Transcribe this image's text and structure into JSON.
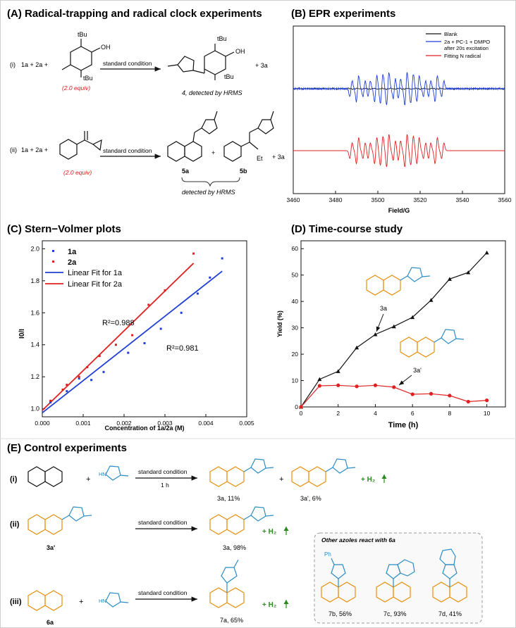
{
  "panelA": {
    "title": "(A) Radical-trapping and radical clock experiments",
    "row1": {
      "label": "(i)",
      "reactants": "1a + 2a +",
      "tbu": "tBu",
      "oh": "OH",
      "equiv": "(2.0 equiv)",
      "arrow": "standard condition",
      "plus3a": "+ 3a",
      "product": "4, detected by HRMS"
    },
    "row2": {
      "label": "(ii)",
      "reactants": "1a + 2a +",
      "equiv": "(2.0 equiv)",
      "arrow": "standard condition",
      "p5a": "5a",
      "plus": "+",
      "p5b": "5b",
      "et": "Et",
      "plus3a": "+ 3a",
      "detected": "detected by HRMS"
    }
  },
  "panelB": {
    "title": "(B) EPR experiments",
    "legend": [
      "Blank",
      "2a + PC-1 + DMPO",
      "after 20s excitation",
      "Fitting N radical"
    ],
    "xlabel": "Field/G",
    "xticks": [
      "3460",
      "3480",
      "3500",
      "3520",
      "3540",
      "3560"
    ]
  },
  "panelC": {
    "title": "(C) Stern−Volmer plots",
    "legend": [
      "1a",
      "2a",
      "Linear Fit for 1a",
      "Linear Fit for 2a"
    ],
    "ylabel": "I0/I",
    "xlabel": "Concentration of 1a/2a (M)",
    "r2_2a": "R²=0.988",
    "r2_1a": "R²=0.981",
    "xticks": [
      "0.000",
      "0.001",
      "0.002",
      "0.003",
      "0.004",
      "0.005"
    ],
    "yticks": [
      "1.0",
      "1.2",
      "1.4",
      "1.6",
      "1.8",
      "2.0"
    ]
  },
  "panelD": {
    "title": "(D) Time-course study",
    "ylabel": "Yield (%)",
    "xlabel": "Time (h)",
    "label3a": "3a",
    "label3ap": "3a'",
    "xticks": [
      "0",
      "2",
      "4",
      "6",
      "8",
      "10"
    ],
    "yticks": [
      "0",
      "10",
      "20",
      "30",
      "40",
      "50",
      "60"
    ]
  },
  "panelE": {
    "title": "(E) Control experiments",
    "row1": {
      "label": "(i)",
      "plus": "+",
      "arrow": "standard condition",
      "time": "1 h",
      "p1": "3a, 11%",
      "plus2": "+",
      "p2": "3a', 6%",
      "h2": "+ H₂"
    },
    "row2": {
      "label": "(ii)",
      "sm": "3a'",
      "arrow": "standard condition",
      "p": "3a, 98%",
      "h2": "+ H₂"
    },
    "row3": {
      "label": "(iii)",
      "plus": "+",
      "sm": "6a",
      "arrow": "standard condition",
      "p": "7a, 65%",
      "h2": "+ H₂"
    },
    "box": {
      "title": "Other azoles react with 6a",
      "ph": "Ph",
      "p7b": "7b, 56%",
      "p7c": "7c, 93%",
      "p7d": "7d, 41%"
    }
  },
  "chart_data": [
    {
      "type": "line",
      "title": "(B) EPR experiments",
      "xlabel": "Field/G",
      "xlim": [
        3460,
        3560
      ],
      "series": [
        {
          "name": "Blank"
        },
        {
          "name": "2a + PC-1 + DMPO after 20s excitation"
        },
        {
          "name": "Fitting N radical"
        }
      ]
    },
    {
      "type": "scatter",
      "title": "(C) Stern−Volmer plots",
      "xlabel": "Concentration of 1a/2a (M)",
      "ylabel": "I0/I",
      "xlim": [
        0,
        0.005
      ],
      "ylim": [
        0.95,
        2.05
      ],
      "series": [
        {
          "name": "1a",
          "color": "#1f3fd6",
          "x": [
            0.0002,
            0.0006,
            0.0009,
            0.0012,
            0.0015,
            0.0021,
            0.0025,
            0.0029,
            0.0034,
            0.0038,
            0.0041,
            0.0044
          ],
          "y": [
            1.04,
            1.11,
            1.19,
            1.18,
            1.23,
            1.35,
            1.41,
            1.5,
            1.6,
            1.72,
            1.82,
            1.94
          ]
        },
        {
          "name": "2a",
          "color": "#e02020",
          "x": [
            0.0002,
            0.0005,
            0.0006,
            0.0009,
            0.0011,
            0.0014,
            0.0018,
            0.0022,
            0.0026,
            0.003,
            0.0037
          ],
          "y": [
            1.05,
            1.12,
            1.15,
            1.2,
            1.26,
            1.33,
            1.4,
            1.46,
            1.65,
            1.74,
            1.97
          ]
        },
        {
          "name": "Linear Fit for 1a",
          "color": "#1f3fd6",
          "x": [
            0,
            0.0044
          ],
          "y": [
            0.975,
            1.86
          ]
        },
        {
          "name": "Linear Fit for 2a",
          "color": "#e02020",
          "x": [
            0,
            0.0037
          ],
          "y": [
            0.99,
            1.91
          ]
        }
      ]
    },
    {
      "type": "line",
      "title": "(D) Time-course study",
      "xlabel": "Time (h)",
      "ylabel": "Yield (%)",
      "xlim": [
        0,
        11
      ],
      "ylim": [
        0,
        63
      ],
      "series": [
        {
          "name": "3a",
          "color": "#111111",
          "x": [
            0,
            1,
            2,
            3,
            4,
            5,
            6,
            7,
            8,
            9,
            10
          ],
          "y": [
            0,
            10.5,
            13.5,
            22.5,
            27.5,
            30.5,
            34,
            40.5,
            48.5,
            51,
            58.5
          ]
        },
        {
          "name": "3a'",
          "color": "#e02020",
          "x": [
            0,
            1,
            2,
            3,
            4,
            5,
            6,
            7,
            8,
            9,
            10
          ],
          "y": [
            0,
            8,
            8.2,
            7.8,
            8.2,
            7.5,
            4.8,
            5,
            4.3,
            2,
            2.5
          ]
        }
      ]
    }
  ]
}
